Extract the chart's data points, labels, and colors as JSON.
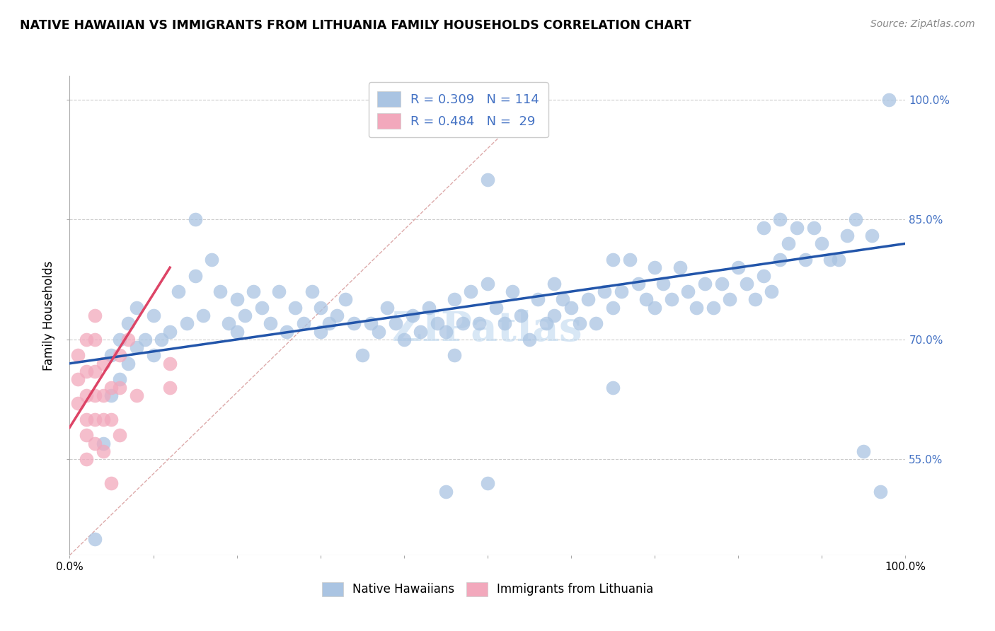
{
  "title": "NATIVE HAWAIIAN VS IMMIGRANTS FROM LITHUANIA FAMILY HOUSEHOLDS CORRELATION CHART",
  "source": "Source: ZipAtlas.com",
  "ylabel": "Family Households",
  "xlim": [
    0,
    100
  ],
  "ylim": [
    43,
    103
  ],
  "yticks": [
    55,
    70,
    85,
    100
  ],
  "ytick_labels": [
    "55.0%",
    "70.0%",
    "85.0%",
    "100.0%"
  ],
  "blue_color": "#aac4e2",
  "pink_color": "#f2a8bc",
  "blue_line_color": "#2255aa",
  "pink_line_color": "#dd4466",
  "blue_scatter": [
    [
      3,
      45
    ],
    [
      4,
      57
    ],
    [
      5,
      63
    ],
    [
      5,
      68
    ],
    [
      6,
      65
    ],
    [
      6,
      70
    ],
    [
      7,
      72
    ],
    [
      7,
      67
    ],
    [
      8,
      74
    ],
    [
      8,
      69
    ],
    [
      9,
      70
    ],
    [
      10,
      68
    ],
    [
      10,
      73
    ],
    [
      11,
      70
    ],
    [
      12,
      71
    ],
    [
      13,
      76
    ],
    [
      14,
      72
    ],
    [
      15,
      85
    ],
    [
      15,
      78
    ],
    [
      16,
      73
    ],
    [
      17,
      80
    ],
    [
      18,
      76
    ],
    [
      19,
      72
    ],
    [
      20,
      71
    ],
    [
      20,
      75
    ],
    [
      21,
      73
    ],
    [
      22,
      76
    ],
    [
      23,
      74
    ],
    [
      24,
      72
    ],
    [
      25,
      76
    ],
    [
      26,
      71
    ],
    [
      27,
      74
    ],
    [
      28,
      72
    ],
    [
      29,
      76
    ],
    [
      30,
      71
    ],
    [
      30,
      74
    ],
    [
      31,
      72
    ],
    [
      32,
      73
    ],
    [
      33,
      75
    ],
    [
      34,
      72
    ],
    [
      35,
      68
    ],
    [
      36,
      72
    ],
    [
      37,
      71
    ],
    [
      38,
      74
    ],
    [
      39,
      72
    ],
    [
      40,
      70
    ],
    [
      41,
      73
    ],
    [
      42,
      71
    ],
    [
      43,
      74
    ],
    [
      44,
      72
    ],
    [
      45,
      71
    ],
    [
      46,
      75
    ],
    [
      46,
      68
    ],
    [
      47,
      72
    ],
    [
      48,
      76
    ],
    [
      49,
      72
    ],
    [
      50,
      90
    ],
    [
      50,
      77
    ],
    [
      51,
      74
    ],
    [
      52,
      72
    ],
    [
      53,
      76
    ],
    [
      54,
      73
    ],
    [
      55,
      70
    ],
    [
      56,
      75
    ],
    [
      57,
      72
    ],
    [
      58,
      77
    ],
    [
      58,
      73
    ],
    [
      59,
      75
    ],
    [
      60,
      74
    ],
    [
      61,
      72
    ],
    [
      62,
      75
    ],
    [
      63,
      72
    ],
    [
      64,
      76
    ],
    [
      65,
      74
    ],
    [
      65,
      80
    ],
    [
      66,
      76
    ],
    [
      67,
      80
    ],
    [
      68,
      77
    ],
    [
      69,
      75
    ],
    [
      70,
      74
    ],
    [
      70,
      79
    ],
    [
      71,
      77
    ],
    [
      72,
      75
    ],
    [
      73,
      79
    ],
    [
      74,
      76
    ],
    [
      75,
      74
    ],
    [
      76,
      77
    ],
    [
      77,
      74
    ],
    [
      78,
      77
    ],
    [
      79,
      75
    ],
    [
      80,
      79
    ],
    [
      81,
      77
    ],
    [
      82,
      75
    ],
    [
      83,
      78
    ],
    [
      83,
      84
    ],
    [
      84,
      76
    ],
    [
      85,
      80
    ],
    [
      85,
      85
    ],
    [
      86,
      82
    ],
    [
      87,
      84
    ],
    [
      88,
      80
    ],
    [
      89,
      84
    ],
    [
      90,
      82
    ],
    [
      91,
      80
    ],
    [
      92,
      80
    ],
    [
      93,
      83
    ],
    [
      94,
      85
    ],
    [
      95,
      56
    ],
    [
      96,
      83
    ],
    [
      97,
      51
    ],
    [
      45,
      51
    ],
    [
      50,
      52
    ],
    [
      65,
      64
    ],
    [
      98,
      100
    ]
  ],
  "pink_scatter": [
    [
      1,
      62
    ],
    [
      1,
      65
    ],
    [
      1,
      68
    ],
    [
      2,
      58
    ],
    [
      2,
      60
    ],
    [
      2,
      63
    ],
    [
      2,
      66
    ],
    [
      2,
      70
    ],
    [
      2,
      55
    ],
    [
      3,
      57
    ],
    [
      3,
      60
    ],
    [
      3,
      63
    ],
    [
      3,
      66
    ],
    [
      3,
      70
    ],
    [
      3,
      73
    ],
    [
      4,
      60
    ],
    [
      4,
      63
    ],
    [
      4,
      67
    ],
    [
      4,
      56
    ],
    [
      5,
      64
    ],
    [
      5,
      60
    ],
    [
      5,
      52
    ],
    [
      6,
      64
    ],
    [
      6,
      68
    ],
    [
      6,
      58
    ],
    [
      7,
      70
    ],
    [
      8,
      63
    ],
    [
      12,
      64
    ],
    [
      12,
      67
    ]
  ],
  "blue_line_x": [
    0,
    100
  ],
  "blue_line_y": [
    67,
    82
  ],
  "pink_line_x": [
    0,
    12
  ],
  "pink_line_y": [
    59,
    79
  ],
  "diag_line_x": [
    0,
    56
  ],
  "diag_line_y": [
    43,
    100
  ],
  "watermark": "ZIPatlas",
  "legend_blue_label": "R = 0.309   N = 114",
  "legend_pink_label": "R = 0.484   N =  29",
  "legend_bottom_blue": "Native Hawaiians",
  "legend_bottom_pink": "Immigrants from Lithuania"
}
